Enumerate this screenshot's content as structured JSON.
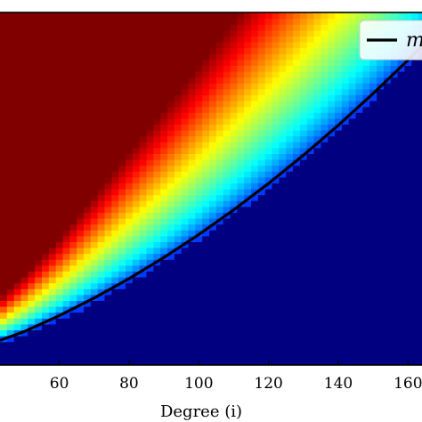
{
  "chart_data": {
    "type": "heatmap",
    "title": "",
    "xlabel": "Degree (i)",
    "ylabel": "",
    "xlim": [
      43,
      164
    ],
    "ylim": [
      0,
      1
    ],
    "x_ticks": [
      60,
      80,
      100,
      120,
      140,
      160
    ],
    "x_tick_labels": [
      "60",
      "80",
      "100",
      "120",
      "140",
      "160"
    ],
    "colormap": "jet",
    "column_width": 2,
    "colormap_stops": [
      "#000080",
      "#0000ff",
      "#0080ff",
      "#00ffff",
      "#80ff80",
      "#ffff00",
      "#ff8000",
      "#ff0000",
      "#800000"
    ],
    "boundary_curve": {
      "name": "m",
      "color": "#000000",
      "x": [
        43,
        50,
        60,
        70,
        80,
        90,
        100,
        110,
        120,
        130,
        140,
        150,
        160,
        164
      ],
      "y": [
        0.07,
        0.095,
        0.14,
        0.19,
        0.245,
        0.305,
        0.37,
        0.44,
        0.515,
        0.595,
        0.68,
        0.77,
        0.865,
        0.905
      ]
    },
    "transition_band": {
      "x": [
        43,
        60,
        80,
        100,
        120,
        140,
        164
      ],
      "width": [
        0.12,
        0.22,
        0.36,
        0.48,
        0.6,
        0.7,
        0.78
      ]
    },
    "legend": {
      "placement": "top-right",
      "entries": [
        {
          "label": "m",
          "color": "#000000"
        }
      ]
    }
  }
}
